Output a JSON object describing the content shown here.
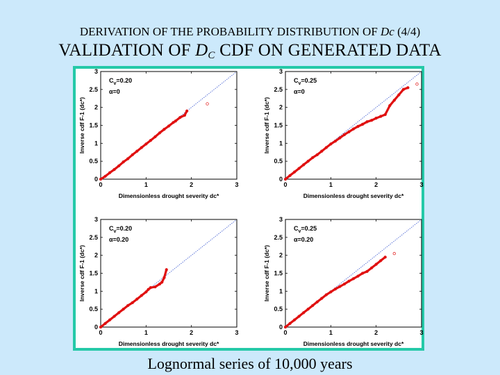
{
  "header": {
    "subtitle_prefix": "DERIVATION OF THE PROBABILITY DISTRIBUTION OF ",
    "subtitle_var": "Dc",
    "subtitle_suffix": " (4/4)",
    "title_prefix": "VALIDATION OF ",
    "title_var": "D",
    "title_sub": "C",
    "title_suffix": "  CDF ON GENERATED DATA"
  },
  "caption": "Lognormal series of 10,000 years",
  "colors": {
    "frame": "#25c9a8",
    "background": "#cce9fb",
    "points": "#e01010",
    "reference_line": "#3a58d0"
  },
  "chart_data": [
    {
      "type": "scatter",
      "position": "top-left",
      "cv_label": "Cv=0.20",
      "alpha_label": "α=0",
      "xlabel": "Dimensionless drought severity dc*",
      "ylabel": "Inverse cdf F-1 (dc*)",
      "xlim": [
        0,
        3
      ],
      "ylim": [
        0,
        3
      ],
      "x_ticks": [
        "0",
        "1",
        "2",
        "3"
      ],
      "y_ticks": [
        "0",
        "0.5",
        "1",
        "1.5",
        "2",
        "2.5",
        "3"
      ],
      "reference_line": [
        [
          0,
          0
        ],
        [
          3,
          3
        ]
      ],
      "points_x": [
        0.0,
        0.1,
        0.2,
        0.3,
        0.4,
        0.5,
        0.6,
        0.7,
        0.8,
        0.9,
        1.0,
        1.1,
        1.2,
        1.3,
        1.4,
        1.5,
        1.6,
        1.65,
        1.75,
        1.85,
        1.9,
        2.35
      ],
      "points_y": [
        0.0,
        0.08,
        0.18,
        0.27,
        0.37,
        0.48,
        0.57,
        0.68,
        0.78,
        0.88,
        0.98,
        1.08,
        1.18,
        1.29,
        1.39,
        1.48,
        1.58,
        1.62,
        1.72,
        1.78,
        1.9,
        2.1
      ]
    },
    {
      "type": "scatter",
      "position": "top-right",
      "cv_label": "Cv=0.25",
      "alpha_label": "α=0",
      "xlabel": "Dimensionless drought severity dc*",
      "ylabel": "Inverse cdf F-1 (dc*)",
      "xlim": [
        0,
        3
      ],
      "ylim": [
        0,
        3
      ],
      "x_ticks": [
        "0",
        "1",
        "2",
        "3"
      ],
      "y_ticks": [
        "0",
        "0.5",
        "1",
        "1.5",
        "2",
        "2.5",
        "3"
      ],
      "reference_line": [
        [
          0,
          0
        ],
        [
          3,
          3
        ]
      ],
      "points_x": [
        0.0,
        0.1,
        0.2,
        0.3,
        0.4,
        0.5,
        0.6,
        0.7,
        0.8,
        0.9,
        1.0,
        1.1,
        1.2,
        1.3,
        1.4,
        1.5,
        1.6,
        1.7,
        1.8,
        1.9,
        2.0,
        2.1,
        2.2,
        2.3,
        2.4,
        2.5,
        2.6,
        2.7,
        2.9
      ],
      "points_y": [
        0.0,
        0.1,
        0.2,
        0.3,
        0.4,
        0.5,
        0.6,
        0.68,
        0.78,
        0.88,
        0.98,
        1.06,
        1.15,
        1.24,
        1.32,
        1.4,
        1.47,
        1.53,
        1.6,
        1.64,
        1.7,
        1.75,
        1.8,
        2.05,
        2.2,
        2.35,
        2.5,
        2.55,
        2.65
      ]
    },
    {
      "type": "scatter",
      "position": "bottom-left",
      "cv_label": "Cv=0.20",
      "alpha_label": "α=0.20",
      "xlabel": "Dimensionless drought severity dc*",
      "ylabel": "Inverse cdf F-1 (dc*)",
      "xlim": [
        0,
        3
      ],
      "ylim": [
        0,
        3
      ],
      "x_ticks": [
        "0",
        "1",
        "2",
        "3"
      ],
      "y_ticks": [
        "0",
        "0.5",
        "1",
        "1.5",
        "2",
        "2.5",
        "3"
      ],
      "reference_line": [
        [
          0,
          0
        ],
        [
          3,
          3
        ]
      ],
      "points_x": [
        0.0,
        0.1,
        0.2,
        0.3,
        0.4,
        0.5,
        0.6,
        0.7,
        0.8,
        0.9,
        1.0,
        1.05,
        1.1,
        1.2,
        1.3,
        1.35,
        1.4,
        1.45
      ],
      "points_y": [
        0.0,
        0.1,
        0.2,
        0.3,
        0.4,
        0.5,
        0.6,
        0.68,
        0.78,
        0.88,
        0.98,
        1.05,
        1.1,
        1.12,
        1.2,
        1.25,
        1.38,
        1.6
      ]
    },
    {
      "type": "scatter",
      "position": "bottom-right",
      "cv_label": "Cv=0.25",
      "alpha_label": "α=0.20",
      "xlabel": "Dimensionless drought severity dc*",
      "ylabel": "Inverse cdf F-1 (dc*)",
      "xlim": [
        0,
        3
      ],
      "ylim": [
        0,
        3
      ],
      "x_ticks": [
        "0",
        "1",
        "2",
        "3"
      ],
      "y_ticks": [
        "0",
        "0.5",
        "1",
        "1.5",
        "2",
        "2.5",
        "3"
      ],
      "reference_line": [
        [
          0,
          0
        ],
        [
          3,
          3
        ]
      ],
      "points_x": [
        0.0,
        0.1,
        0.2,
        0.3,
        0.4,
        0.5,
        0.6,
        0.7,
        0.8,
        0.9,
        1.0,
        1.1,
        1.2,
        1.3,
        1.4,
        1.5,
        1.6,
        1.7,
        1.8,
        1.9,
        2.0,
        2.1,
        2.2,
        2.4
      ],
      "points_y": [
        0.0,
        0.1,
        0.2,
        0.3,
        0.4,
        0.5,
        0.6,
        0.7,
        0.8,
        0.9,
        0.98,
        1.06,
        1.13,
        1.2,
        1.28,
        1.35,
        1.42,
        1.5,
        1.55,
        1.65,
        1.75,
        1.85,
        1.95,
        2.05
      ]
    }
  ]
}
